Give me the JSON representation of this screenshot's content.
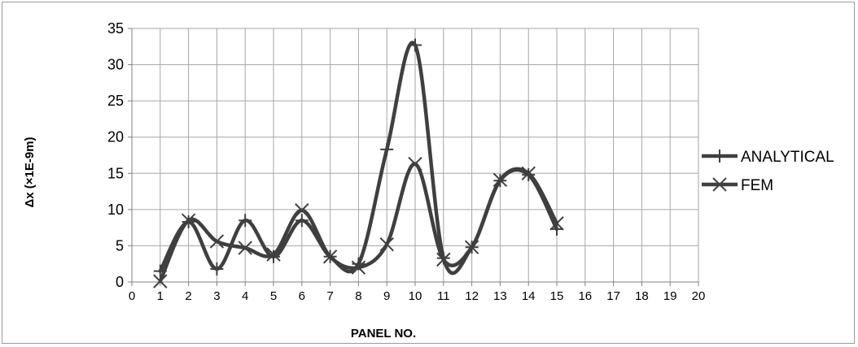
{
  "chart_data": {
    "type": "line",
    "title": "",
    "xlabel": "PANEL NO.",
    "ylabel": "Δx  (×1E-9m)",
    "xlim": [
      0,
      20
    ],
    "ylim": [
      0,
      35
    ],
    "x_ticks": [
      "0",
      "1",
      "2",
      "3",
      "4",
      "5",
      "6",
      "7",
      "8",
      "9",
      "10",
      "11",
      "12",
      "13",
      "14",
      "15",
      "16",
      "17",
      "18",
      "19",
      "20"
    ],
    "y_ticks": [
      "0",
      "5",
      "10",
      "15",
      "20",
      "25",
      "30",
      "35"
    ],
    "grid": true,
    "smooth": true,
    "legend_position": "right",
    "series": [
      {
        "name": "ANALYTICAL",
        "marker": "plus",
        "color": "#3f3f3f",
        "x": [
          1,
          2,
          3,
          4,
          5,
          6,
          7,
          8,
          9,
          10,
          11,
          12,
          13,
          14,
          15
        ],
        "y": [
          1.5,
          8.3,
          1.8,
          8.5,
          3.5,
          8.5,
          3.5,
          2.5,
          18.3,
          32.7,
          3.3,
          4.8,
          14.0,
          14.8,
          7.3
        ]
      },
      {
        "name": "FEM",
        "marker": "x",
        "color": "#3f3f3f",
        "x": [
          1,
          2,
          3,
          4,
          5,
          6,
          7,
          8,
          9,
          10,
          11,
          12,
          13,
          14,
          15
        ],
        "y": [
          0.1,
          8.5,
          5.6,
          4.7,
          3.8,
          9.9,
          3.5,
          2.0,
          5.2,
          16.3,
          3.1,
          4.8,
          14.1,
          15.0,
          8.1
        ]
      }
    ]
  }
}
